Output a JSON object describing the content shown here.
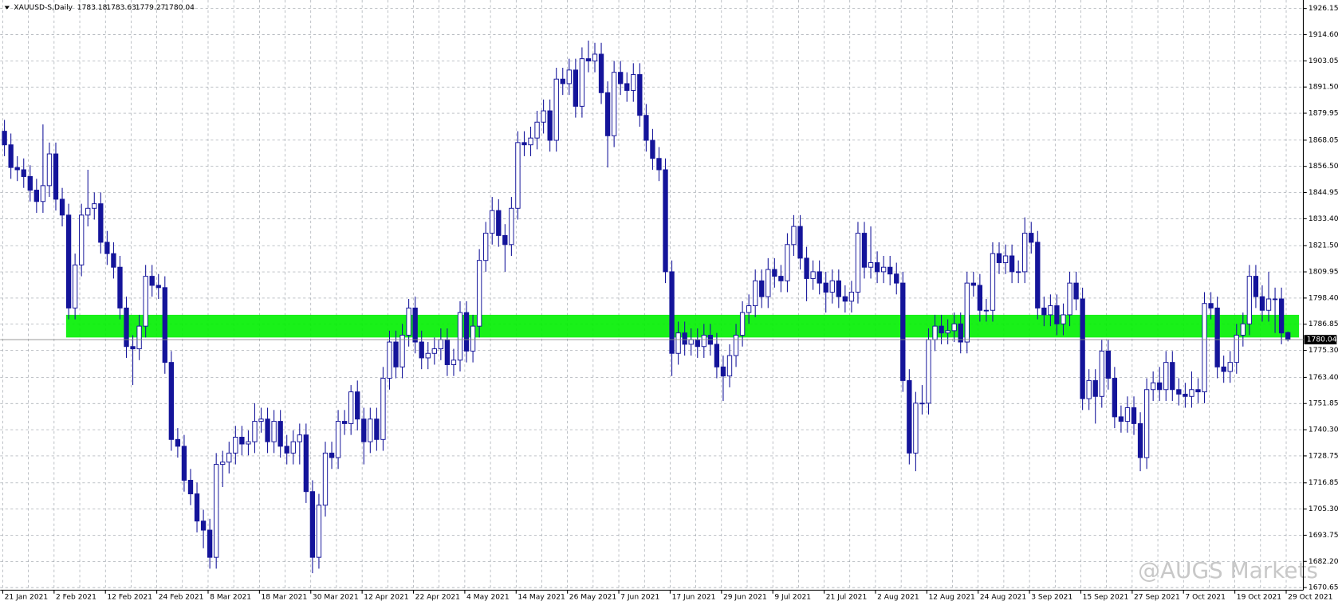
{
  "chart_data": {
    "type": "candlestick",
    "title": "XAUUSD-S,Daily",
    "watermark": "@AUGS Markets",
    "up_color": "#ffffff",
    "down_color": "#14149a",
    "grid": true,
    "ylim": [
      1669.5,
      1929.9
    ],
    "yticks": [
      1926.15,
      {
        "value": 1914.6,
        "label": "1914.60"
      },
      1903.05,
      {
        "value": 1891.5,
        "label": "1891.50"
      },
      1879.95,
      1868.05,
      {
        "value": 1856.5,
        "label": "1856.50"
      },
      1844.95,
      {
        "value": 1833.4,
        "label": "1833.40"
      },
      {
        "value": 1821.5,
        "label": "1821.50"
      },
      1809.95,
      {
        "value": 1798.4,
        "label": "1798.40"
      },
      1786.85,
      {
        "value": 1775.3,
        "label": "1775.30"
      },
      {
        "value": 1763.4,
        "label": "1763.40"
      },
      1751.85,
      {
        "value": 1740.3,
        "label": "1740.30"
      },
      1728.75,
      1716.85,
      {
        "value": 1705.3,
        "label": "1705.30"
      },
      1693.75,
      {
        "value": 1682.2,
        "label": "1682.20"
      },
      1670.65
    ],
    "xticks": [
      {
        "value": 0,
        "label": "21 Jan 2021"
      },
      {
        "value": 8,
        "label": "2 Feb 2021"
      },
      {
        "value": 16,
        "label": "12 Feb 2021"
      },
      {
        "value": 24,
        "label": "24 Feb 2021"
      },
      {
        "value": 32,
        "label": "8 Mar 2021"
      },
      {
        "value": 40,
        "label": "18 Mar 2021"
      },
      {
        "value": 48,
        "label": "30 Mar 2021"
      },
      {
        "value": 56,
        "label": "12 Apr 2021"
      },
      {
        "value": 64,
        "label": "22 Apr 2021"
      },
      {
        "value": 72,
        "label": "4 May 2021"
      },
      {
        "value": 80,
        "label": "14 May 2021"
      },
      {
        "value": 88,
        "label": "26 May 2021"
      },
      {
        "value": 96,
        "label": "7 Jun 2021"
      },
      {
        "value": 104,
        "label": "17 Jun 2021"
      },
      {
        "value": 112,
        "label": "29 Jun 2021"
      },
      {
        "value": 120,
        "label": "9 Jul 2021"
      },
      {
        "value": 128,
        "label": "21 Jul 2021"
      },
      {
        "value": 136,
        "label": "2 Aug 2021"
      },
      {
        "value": 144,
        "label": "12 Aug 2021"
      },
      {
        "value": 152,
        "label": "24 Aug 2021"
      },
      {
        "value": 160,
        "label": "3 Sep 2021"
      },
      {
        "value": 168,
        "label": "15 Sep 2021"
      },
      {
        "value": 176,
        "label": "27 Sep 2021"
      },
      {
        "value": 184,
        "label": "7 Oct 2021"
      },
      {
        "value": 192,
        "label": "19 Oct 2021"
      },
      {
        "value": 200,
        "label": "29 Oct 2021"
      }
    ],
    "zone": {
      "low": 1781,
      "high": 1791,
      "start": 10,
      "color": "#00f000"
    },
    "open": [
      1872,
      1866,
      1856,
      1855,
      1852,
      1846,
      1841,
      1848,
      1862,
      1842,
      1835,
      1794,
      1813,
      1835,
      1838,
      1840,
      1823,
      1818,
      1812,
      1794,
      1777,
      1776,
      1786,
      1808,
      1804,
      1803,
      1770,
      1736,
      1733,
      1718,
      1712,
      1700,
      1696,
      1684,
      1725,
      1726,
      1730,
      1737,
      1734,
      1735,
      1744,
      1745,
      1735,
      1744,
      1733,
      1730,
      1735,
      1738,
      1713,
      1684,
      1707,
      1730,
      1728,
      1744,
      1743,
      1757,
      1745,
      1735,
      1745,
      1736,
      1763,
      1779,
      1768,
      1782,
      1794,
      1779,
      1772,
      1774,
      1776,
      1780,
      1769,
      1771,
      1792,
      1775,
      1786,
      1815,
      1827,
      1837,
      1826,
      1822,
      1838,
      1867,
      1866,
      1869,
      1876,
      1881,
      1868,
      1895,
      1893,
      1899,
      1883,
      1904,
      1903,
      1906,
      1889,
      1870,
      1898,
      1893,
      1890,
      1897,
      1879,
      1868,
      1860,
      1855,
      1810,
      1774,
      1783,
      1778,
      1780,
      1777,
      1782,
      1778,
      1768,
      1764,
      1773,
      1782,
      1792,
      1795,
      1806,
      1799,
      1811,
      1808,
      1806,
      1822,
      1830,
      1816,
      1807,
      1810,
      1805,
      1801,
      1806,
      1799,
      1797,
      1801,
      1827,
      1812,
      1814,
      1810,
      1812,
      1809,
      1805,
      1762,
      1730,
      1752,
      1752,
      1780,
      1786,
      1783,
      1784,
      1787,
      1779,
      1805,
      1804,
      1793,
      1793,
      1818,
      1814,
      1817,
      1810,
      1810,
      1827,
      1823,
      1794,
      1791,
      1795,
      1787,
      1791,
      1805,
      1798,
      1754,
      1762,
      1755,
      1775,
      1763,
      1746,
      1744,
      1750,
      1743,
      1728,
      1758,
      1761,
      1758,
      1770,
      1758,
      1756,
      1755,
      1758,
      1757,
      1796,
      1794,
      1768,
      1766,
      1770,
      1782,
      1787,
      1808,
      1799,
      1793,
      1798,
      1798,
      1783.18
    ],
    "high": [
      1877,
      1871,
      1861,
      1860,
      1857,
      1851,
      1875,
      1867,
      1867,
      1847,
      1840,
      1818,
      1840,
      1855,
      1845,
      1845,
      1828,
      1823,
      1817,
      1799,
      1782,
      1791,
      1813,
      1813,
      1809,
      1808,
      1775,
      1741,
      1738,
      1723,
      1717,
      1705,
      1701,
      1730,
      1731,
      1735,
      1742,
      1742,
      1740,
      1752,
      1750,
      1750,
      1749,
      1749,
      1738,
      1740,
      1743,
      1743,
      1718,
      1712,
      1735,
      1735,
      1749,
      1749,
      1760,
      1762,
      1750,
      1750,
      1750,
      1768,
      1784,
      1784,
      1787,
      1798,
      1799,
      1784,
      1779,
      1781,
      1785,
      1785,
      1776,
      1797,
      1797,
      1791,
      1820,
      1832,
      1843,
      1842,
      1831,
      1843,
      1872,
      1872,
      1874,
      1881,
      1886,
      1886,
      1900,
      1900,
      1904,
      1904,
      1909,
      1912,
      1911,
      1911,
      1894,
      1903,
      1903,
      1898,
      1902,
      1902,
      1884,
      1873,
      1865,
      1860,
      1815,
      1788,
      1788,
      1785,
      1785,
      1787,
      1787,
      1783,
      1773,
      1778,
      1787,
      1797,
      1800,
      1811,
      1811,
      1816,
      1816,
      1813,
      1827,
      1835,
      1835,
      1821,
      1815,
      1815,
      1810,
      1811,
      1811,
      1804,
      1806,
      1832,
      1832,
      1830,
      1819,
      1817,
      1817,
      1814,
      1810,
      1767,
      1757,
      1760,
      1785,
      1791,
      1791,
      1789,
      1792,
      1792,
      1810,
      1810,
      1809,
      1798,
      1823,
      1823,
      1822,
      1822,
      1815,
      1834,
      1832,
      1828,
      1799,
      1800,
      1800,
      1796,
      1810,
      1810,
      1803,
      1767,
      1767,
      1780,
      1780,
      1768,
      1751,
      1755,
      1755,
      1748,
      1763,
      1766,
      1768,
      1775,
      1775,
      1763,
      1761,
      1766,
      1763,
      1801,
      1801,
      1799,
      1773,
      1775,
      1787,
      1792,
      1813,
      1813,
      1804,
      1810,
      1803,
      1803,
      1783.63
    ],
    "low": [
      1861,
      1851,
      1850,
      1847,
      1841,
      1836,
      1836,
      1843,
      1837,
      1830,
      1789,
      1789,
      1808,
      1830,
      1833,
      1818,
      1813,
      1807,
      1789,
      1772,
      1760,
      1771,
      1781,
      1799,
      1798,
      1765,
      1731,
      1728,
      1713,
      1707,
      1695,
      1688,
      1679,
      1679,
      1715,
      1721,
      1725,
      1729,
      1729,
      1730,
      1739,
      1730,
      1730,
      1728,
      1725,
      1725,
      1725,
      1708,
      1677,
      1679,
      1702,
      1723,
      1723,
      1738,
      1738,
      1740,
      1725,
      1730,
      1731,
      1731,
      1758,
      1763,
      1763,
      1777,
      1774,
      1767,
      1767,
      1769,
      1771,
      1764,
      1764,
      1766,
      1770,
      1770,
      1781,
      1810,
      1822,
      1821,
      1810,
      1817,
      1833,
      1861,
      1861,
      1864,
      1871,
      1863,
      1863,
      1888,
      1888,
      1878,
      1878,
      1898,
      1898,
      1884,
      1856,
      1865,
      1888,
      1885,
      1885,
      1874,
      1863,
      1855,
      1850,
      1805,
      1764,
      1769,
      1773,
      1773,
      1772,
      1772,
      1773,
      1763,
      1753,
      1759,
      1768,
      1777,
      1787,
      1790,
      1794,
      1794,
      1803,
      1801,
      1801,
      1817,
      1811,
      1797,
      1802,
      1800,
      1792,
      1796,
      1794,
      1792,
      1792,
      1796,
      1807,
      1807,
      1805,
      1805,
      1804,
      1800,
      1757,
      1725,
      1722,
      1747,
      1747,
      1775,
      1778,
      1778,
      1779,
      1774,
      1774,
      1799,
      1788,
      1788,
      1788,
      1809,
      1809,
      1805,
      1805,
      1805,
      1818,
      1789,
      1786,
      1786,
      1782,
      1782,
      1786,
      1793,
      1749,
      1749,
      1743,
      1750,
      1758,
      1741,
      1739,
      1739,
      1738,
      1722,
      1723,
      1753,
      1753,
      1753,
      1753,
      1751,
      1750,
      1750,
      1752,
      1752,
      1789,
      1763,
      1761,
      1761,
      1765,
      1777,
      1782,
      1794,
      1788,
      1788,
      1783,
      1778,
      1779.27
    ],
    "close": [
      1866,
      1856,
      1855,
      1852,
      1846,
      1841,
      1848,
      1862,
      1842,
      1835,
      1794,
      1813,
      1835,
      1838,
      1840,
      1823,
      1818,
      1812,
      1794,
      1777,
      1776,
      1786,
      1808,
      1804,
      1803,
      1770,
      1736,
      1733,
      1718,
      1712,
      1700,
      1696,
      1684,
      1725,
      1726,
      1730,
      1737,
      1734,
      1735,
      1744,
      1745,
      1735,
      1744,
      1733,
      1730,
      1735,
      1738,
      1713,
      1684,
      1707,
      1730,
      1728,
      1744,
      1743,
      1757,
      1745,
      1735,
      1745,
      1736,
      1763,
      1779,
      1768,
      1782,
      1794,
      1779,
      1772,
      1774,
      1776,
      1780,
      1769,
      1771,
      1792,
      1775,
      1786,
      1815,
      1827,
      1837,
      1826,
      1822,
      1838,
      1867,
      1866,
      1869,
      1876,
      1881,
      1868,
      1895,
      1893,
      1899,
      1883,
      1904,
      1903,
      1906,
      1889,
      1870,
      1898,
      1893,
      1890,
      1897,
      1879,
      1868,
      1860,
      1855,
      1810,
      1774,
      1783,
      1778,
      1780,
      1777,
      1782,
      1778,
      1768,
      1764,
      1773,
      1782,
      1792,
      1795,
      1806,
      1799,
      1811,
      1808,
      1806,
      1822,
      1830,
      1816,
      1807,
      1810,
      1805,
      1801,
      1806,
      1799,
      1797,
      1801,
      1827,
      1812,
      1814,
      1810,
      1812,
      1809,
      1805,
      1762,
      1730,
      1752,
      1752,
      1780,
      1786,
      1783,
      1784,
      1787,
      1779,
      1805,
      1804,
      1793,
      1793,
      1818,
      1814,
      1817,
      1810,
      1810,
      1827,
      1823,
      1794,
      1791,
      1795,
      1787,
      1791,
      1805,
      1798,
      1754,
      1762,
      1755,
      1775,
      1763,
      1746,
      1744,
      1750,
      1743,
      1728,
      1758,
      1761,
      1758,
      1770,
      1758,
      1756,
      1755,
      1758,
      1757,
      1796,
      1794,
      1768,
      1766,
      1770,
      1782,
      1787,
      1808,
      1799,
      1793,
      1798,
      1798,
      1783,
      1780.04
    ]
  }
}
